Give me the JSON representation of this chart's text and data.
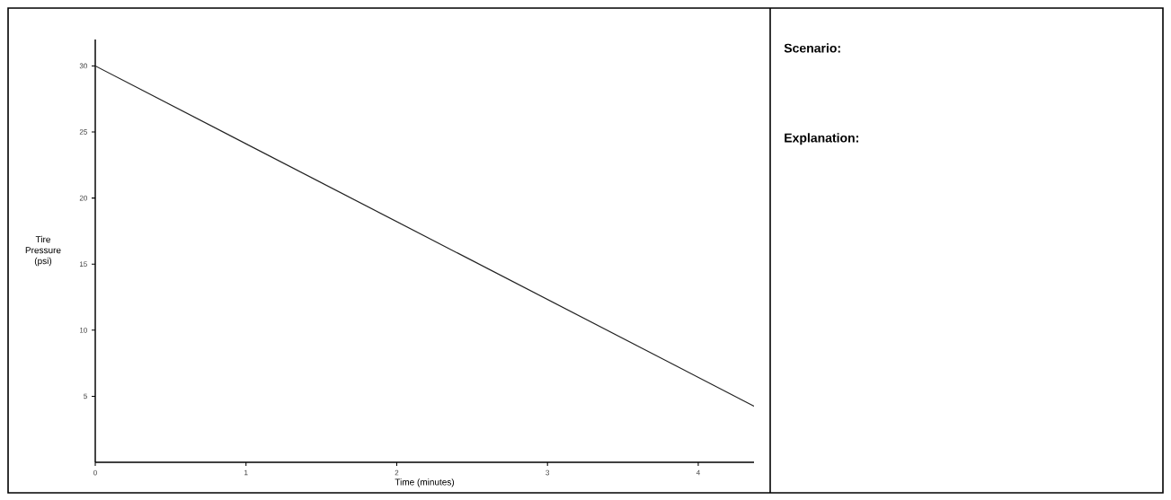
{
  "chart_data": {
    "type": "line",
    "xlabel": "Time (minutes)",
    "ylabel": "Tire Pressure (psi)",
    "x": [
      0,
      4.37
    ],
    "series": [
      {
        "color": "#222222",
        "values": [
          30,
          4.25
        ]
      }
    ],
    "xlim": [
      0,
      4.37
    ],
    "ylim": [
      0,
      32
    ],
    "xticks": [
      0,
      1,
      2,
      3,
      4
    ],
    "yticks": [
      5,
      10,
      15,
      20,
      25,
      30
    ],
    "grid": false,
    "marker": "none",
    "line_style": "solid",
    "annotations": [
      "**Scenario:**",
      "**Explanation:**"
    ]
  }
}
